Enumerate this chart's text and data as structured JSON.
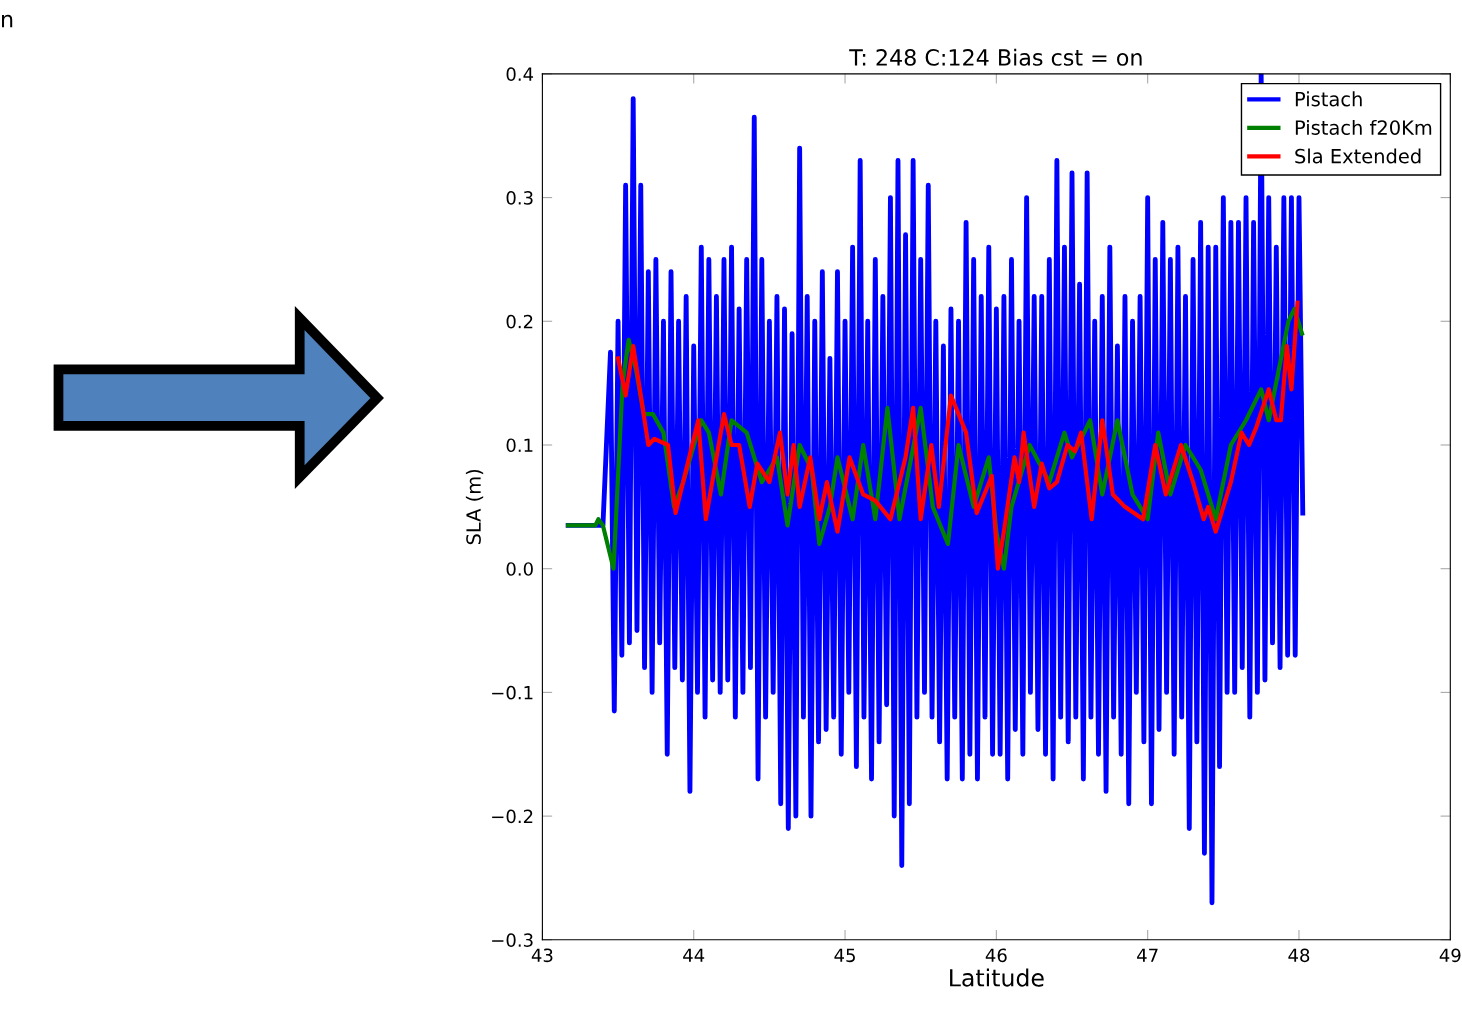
{
  "chart_data": {
    "type": "line",
    "title": "T: 248 C:124 Bias cst = on",
    "xlabel": "Latitude",
    "ylabel": "SLA (m)",
    "annotations": [
      "n"
    ],
    "xlim": [
      43,
      49
    ],
    "xticks": [
      43,
      44,
      45,
      46,
      47,
      48,
      49
    ],
    "ylim": [
      -0.3,
      0.4
    ],
    "yticks": [
      {
        "value": -0.3,
        "label": "−0.3"
      },
      {
        "value": -0.2,
        "label": "−0.2"
      },
      {
        "value": -0.1,
        "label": "−0.1"
      },
      {
        "value": 0.0,
        "label": "0.0"
      },
      0.1,
      0.2,
      0.3,
      0.4
    ],
    "grid": false,
    "legend": "top right",
    "marker": "none",
    "line_style": "solid",
    "series": [
      {
        "name": "Pistach",
        "color": "#0000ff",
        "x": [
          43.17,
          43.4,
          43.45,
          43.475,
          43.5,
          43.525,
          43.55,
          43.575,
          43.6,
          43.625,
          43.65,
          43.675,
          43.7,
          43.725,
          43.75,
          43.775,
          43.8,
          43.825,
          43.85,
          43.875,
          43.9,
          43.925,
          43.95,
          43.975,
          44.0,
          44.025,
          44.05,
          44.075,
          44.1,
          44.125,
          44.15,
          44.175,
          44.2,
          44.225,
          44.25,
          44.275,
          44.3,
          44.325,
          44.35,
          44.375,
          44.4,
          44.425,
          44.45,
          44.475,
          44.5,
          44.525,
          44.55,
          44.575,
          44.6,
          44.625,
          44.65,
          44.675,
          44.7,
          44.725,
          44.75,
          44.775,
          44.8,
          44.825,
          44.85,
          44.875,
          44.9,
          44.925,
          44.95,
          44.975,
          45.0,
          45.025,
          45.05,
          45.075,
          45.1,
          45.125,
          45.15,
          45.175,
          45.2,
          45.225,
          45.25,
          45.275,
          45.3,
          45.325,
          45.35,
          45.375,
          45.4,
          45.425,
          45.45,
          45.475,
          45.5,
          45.525,
          45.55,
          45.575,
          45.6,
          45.625,
          45.65,
          45.675,
          45.7,
          45.725,
          45.75,
          45.775,
          45.8,
          45.825,
          45.85,
          45.875,
          45.9,
          45.925,
          45.95,
          45.975,
          46.0,
          46.025,
          46.05,
          46.075,
          46.1,
          46.125,
          46.15,
          46.175,
          46.2,
          46.225,
          46.25,
          46.275,
          46.3,
          46.325,
          46.35,
          46.375,
          46.4,
          46.425,
          46.45,
          46.475,
          46.5,
          46.525,
          46.55,
          46.575,
          46.6,
          46.625,
          46.65,
          46.675,
          46.7,
          46.725,
          46.75,
          46.775,
          46.8,
          46.825,
          46.85,
          46.875,
          46.9,
          46.925,
          46.95,
          46.975,
          47.0,
          47.025,
          47.05,
          47.075,
          47.1,
          47.125,
          47.15,
          47.175,
          47.2,
          47.225,
          47.25,
          47.275,
          47.3,
          47.325,
          47.35,
          47.375,
          47.4,
          47.425,
          47.45,
          47.475,
          47.5,
          47.525,
          47.55,
          47.575,
          47.6,
          47.625,
          47.65,
          47.675,
          47.7,
          47.725,
          47.75,
          47.775,
          47.8,
          47.825,
          47.85,
          47.875,
          47.9,
          47.925,
          47.95,
          47.975,
          48.0,
          48.025
        ],
        "values": [
          0.035,
          0.035,
          0.175,
          -0.115,
          0.2,
          -0.07,
          0.31,
          -0.06,
          0.38,
          -0.05,
          0.31,
          -0.08,
          0.24,
          -0.1,
          0.25,
          -0.06,
          0.2,
          -0.15,
          0.24,
          -0.08,
          0.2,
          -0.09,
          0.22,
          -0.18,
          0.18,
          -0.1,
          0.26,
          -0.12,
          0.25,
          -0.09,
          0.22,
          -0.1,
          0.25,
          -0.09,
          0.26,
          -0.12,
          0.21,
          -0.1,
          0.25,
          -0.08,
          0.365,
          -0.17,
          0.25,
          -0.12,
          0.2,
          -0.1,
          0.22,
          -0.19,
          0.21,
          -0.21,
          0.19,
          -0.2,
          0.34,
          -0.12,
          0.22,
          -0.2,
          0.2,
          -0.14,
          0.24,
          -0.13,
          0.17,
          -0.12,
          0.24,
          -0.15,
          0.2,
          -0.1,
          0.26,
          -0.16,
          0.33,
          -0.12,
          0.2,
          -0.17,
          0.25,
          -0.14,
          0.22,
          -0.11,
          0.3,
          -0.2,
          0.33,
          -0.24,
          0.27,
          -0.19,
          0.33,
          -0.12,
          0.25,
          -0.1,
          0.31,
          -0.12,
          0.2,
          -0.14,
          0.18,
          -0.17,
          0.21,
          -0.12,
          0.2,
          -0.17,
          0.28,
          -0.15,
          0.25,
          -0.17,
          0.22,
          -0.12,
          0.26,
          -0.15,
          0.21,
          -0.15,
          0.22,
          -0.17,
          0.25,
          -0.13,
          0.2,
          -0.15,
          0.3,
          -0.1,
          0.22,
          -0.13,
          0.22,
          -0.15,
          0.25,
          -0.17,
          0.33,
          -0.12,
          0.26,
          -0.14,
          0.32,
          -0.12,
          0.23,
          -0.17,
          0.32,
          -0.12,
          0.2,
          -0.15,
          0.22,
          -0.18,
          0.26,
          -0.12,
          0.18,
          -0.15,
          0.22,
          -0.19,
          0.2,
          -0.1,
          0.22,
          -0.14,
          0.3,
          -0.19,
          0.25,
          -0.13,
          0.28,
          -0.1,
          0.25,
          -0.15,
          0.26,
          -0.12,
          0.22,
          -0.21,
          0.25,
          -0.14,
          0.28,
          -0.23,
          0.26,
          -0.27,
          0.26,
          -0.16,
          0.3,
          -0.1,
          0.28,
          -0.1,
          0.28,
          -0.08,
          0.3,
          -0.12,
          0.28,
          -0.1,
          0.4,
          -0.09,
          0.3,
          -0.06,
          0.26,
          -0.08,
          0.3,
          -0.07,
          0.3,
          -0.07,
          0.3,
          0.045
        ]
      },
      {
        "name": "Pistach f20Km",
        "color": "#008000",
        "x": [
          43.17,
          43.35,
          43.37,
          43.4,
          43.47,
          43.53,
          43.57,
          43.62,
          43.67,
          43.73,
          43.8,
          43.87,
          43.93,
          44.05,
          44.1,
          44.18,
          44.25,
          44.35,
          44.45,
          44.55,
          44.62,
          44.7,
          44.78,
          44.83,
          44.9,
          44.95,
          45.05,
          45.12,
          45.2,
          45.28,
          45.36,
          45.5,
          45.58,
          45.68,
          45.75,
          45.85,
          45.95,
          46.0,
          46.05,
          46.1,
          46.22,
          46.35,
          46.45,
          46.5,
          46.62,
          46.7,
          46.8,
          46.9,
          47.0,
          47.07,
          47.15,
          47.25,
          47.35,
          47.45,
          47.55,
          47.65,
          47.75,
          47.8,
          47.93,
          47.97,
          48.02
        ],
        "values": [
          0.035,
          0.035,
          0.04,
          0.035,
          0.0,
          0.15,
          0.185,
          0.16,
          0.125,
          0.125,
          0.11,
          0.05,
          0.07,
          0.12,
          0.11,
          0.06,
          0.12,
          0.11,
          0.07,
          0.09,
          0.035,
          0.1,
          0.08,
          0.02,
          0.05,
          0.09,
          0.04,
          0.1,
          0.04,
          0.13,
          0.04,
          0.13,
          0.05,
          0.02,
          0.1,
          0.05,
          0.09,
          0.03,
          0.0,
          0.05,
          0.1,
          0.07,
          0.11,
          0.09,
          0.12,
          0.06,
          0.12,
          0.06,
          0.04,
          0.11,
          0.06,
          0.1,
          0.08,
          0.04,
          0.1,
          0.12,
          0.145,
          0.12,
          0.2,
          0.21,
          0.19
        ]
      },
      {
        "name": "Sla Extended",
        "color": "#ff0000",
        "x": [
          43.5,
          43.55,
          43.6,
          43.7,
          43.74,
          43.83,
          43.88,
          43.95,
          44.03,
          44.08,
          44.2,
          44.25,
          44.3,
          44.37,
          44.42,
          44.5,
          44.57,
          44.62,
          44.66,
          44.7,
          44.77,
          44.83,
          44.88,
          44.95,
          45.03,
          45.12,
          45.2,
          45.3,
          45.4,
          45.45,
          45.5,
          45.57,
          45.62,
          45.7,
          45.8,
          45.87,
          45.97,
          46.01,
          46.05,
          46.12,
          46.15,
          46.18,
          46.25,
          46.3,
          46.35,
          46.4,
          46.47,
          46.52,
          46.56,
          46.63,
          46.7,
          46.77,
          46.85,
          46.97,
          47.05,
          47.12,
          47.22,
          47.3,
          47.37,
          47.4,
          47.45,
          47.55,
          47.62,
          47.67,
          47.72,
          47.8,
          47.85,
          47.88,
          47.92,
          47.95,
          47.99
        ],
        "values": [
          0.17,
          0.14,
          0.18,
          0.1,
          0.105,
          0.1,
          0.045,
          0.08,
          0.12,
          0.04,
          0.125,
          0.1,
          0.1,
          0.05,
          0.085,
          0.07,
          0.11,
          0.06,
          0.1,
          0.05,
          0.09,
          0.04,
          0.07,
          0.03,
          0.09,
          0.06,
          0.055,
          0.04,
          0.09,
          0.13,
          0.04,
          0.1,
          0.05,
          0.14,
          0.11,
          0.045,
          0.075,
          0.0,
          0.03,
          0.09,
          0.07,
          0.11,
          0.05,
          0.085,
          0.065,
          0.07,
          0.1,
          0.095,
          0.11,
          0.04,
          0.12,
          0.06,
          0.05,
          0.04,
          0.1,
          0.06,
          0.1,
          0.07,
          0.04,
          0.05,
          0.03,
          0.07,
          0.11,
          0.1,
          0.115,
          0.145,
          0.12,
          0.12,
          0.18,
          0.145,
          0.215
        ]
      }
    ]
  }
}
